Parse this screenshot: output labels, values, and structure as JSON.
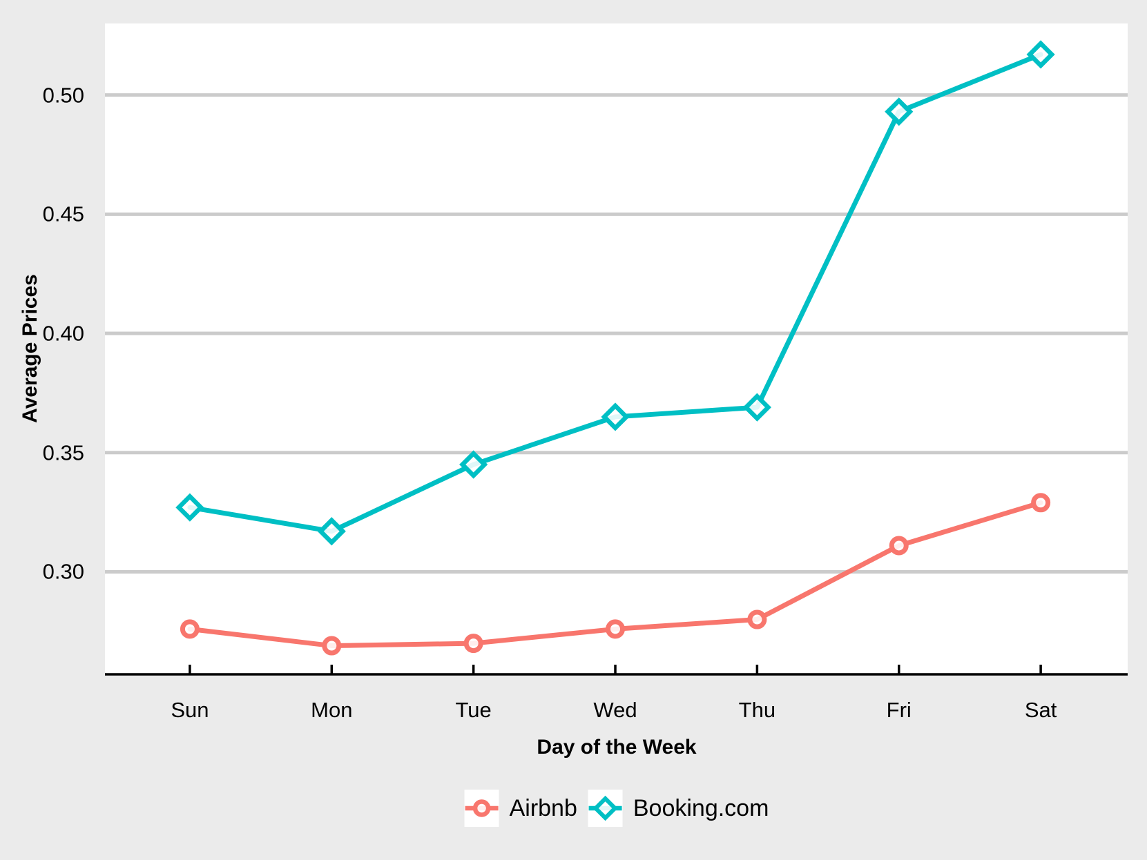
{
  "chart_data": {
    "type": "line",
    "categories": [
      "Sun",
      "Mon",
      "Tue",
      "Wed",
      "Thu",
      "Fri",
      "Sat"
    ],
    "series": [
      {
        "name": "Airbnb",
        "color": "#F8766D",
        "marker": "circle",
        "values": [
          0.276,
          0.269,
          0.27,
          0.276,
          0.28,
          0.311,
          0.329
        ]
      },
      {
        "name": "Booking.com",
        "color": "#00BFC4",
        "marker": "diamond",
        "values": [
          0.327,
          0.317,
          0.345,
          0.365,
          0.369,
          0.493,
          0.517
        ]
      }
    ],
    "title": "",
    "xlabel": "Day of the Week",
    "ylabel": "Average Prices",
    "yticks": [
      0.3,
      0.35,
      0.4,
      0.45,
      0.5
    ],
    "ytick_labels": [
      "0.30",
      "0.35",
      "0.40",
      "0.45",
      "0.50"
    ],
    "ylim": [
      0.257,
      0.53
    ],
    "grid": "horizontal-major-only",
    "legend_position": "bottom-center",
    "figure_bg": "#EBEBEB",
    "panel_bg": "#FFFFFF",
    "gridline_color": "#CBCBCB",
    "axis_line_color": "#000000",
    "text_color": "#000000"
  }
}
